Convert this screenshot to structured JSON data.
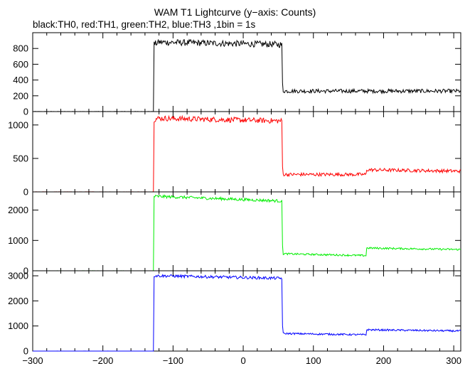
{
  "title": "WAM T1 Lightcurve (y−axis: Counts)",
  "subtitle": "black:TH0, red:TH1, green:TH2, blue:TH3 ,1bin = 1s",
  "chart_data": {
    "type": "line",
    "xlim": [
      -300,
      310
    ],
    "x_ticks": [
      -300,
      -200,
      -100,
      0,
      100,
      200,
      300
    ],
    "x_tick_labels": [
      "−300",
      "−200",
      "−100",
      "0",
      "100",
      "200",
      "300"
    ],
    "grid": false,
    "legend": "none",
    "panels": [
      {
        "series": "TH0",
        "color": "#000000",
        "ylim": [
          0,
          1000
        ],
        "y_ticks": [
          0,
          200,
          400,
          600,
          800
        ],
        "x": [
          -300,
          -128,
          -128,
          -120,
          55,
          55,
          57,
          175,
          310
        ],
        "y": [
          0,
          0,
          850,
          880,
          850,
          450,
          260,
          260,
          260
        ],
        "noise": 25
      },
      {
        "series": "TH1",
        "color": "#ff0000",
        "ylim": [
          0,
          1200
        ],
        "y_ticks": [
          0,
          500,
          1000
        ],
        "x": [
          -300,
          -128,
          -128,
          -120,
          55,
          55,
          57,
          175,
          175,
          310
        ],
        "y": [
          0,
          0,
          1080,
          1100,
          1060,
          500,
          260,
          260,
          330,
          310
        ],
        "noise": 25
      },
      {
        "series": "TH2",
        "color": "#00ee00",
        "ylim": [
          0,
          2600
        ],
        "y_ticks": [
          0,
          1000,
          2000
        ],
        "x": [
          -300,
          -128,
          -128,
          -120,
          55,
          55,
          57,
          175,
          175,
          310
        ],
        "y": [
          0,
          0,
          2450,
          2450,
          2300,
          1100,
          560,
          500,
          750,
          700
        ],
        "noise": 30
      },
      {
        "series": "TH3",
        "color": "#0000ff",
        "ylim": [
          0,
          3200
        ],
        "y_ticks": [
          0,
          1000,
          2000,
          3000
        ],
        "x": [
          -300,
          -128,
          -128,
          -120,
          55,
          55,
          57,
          175,
          175,
          310
        ],
        "y": [
          0,
          0,
          3000,
          3000,
          2900,
          1300,
          700,
          650,
          850,
          800
        ],
        "noise": 35
      }
    ]
  }
}
